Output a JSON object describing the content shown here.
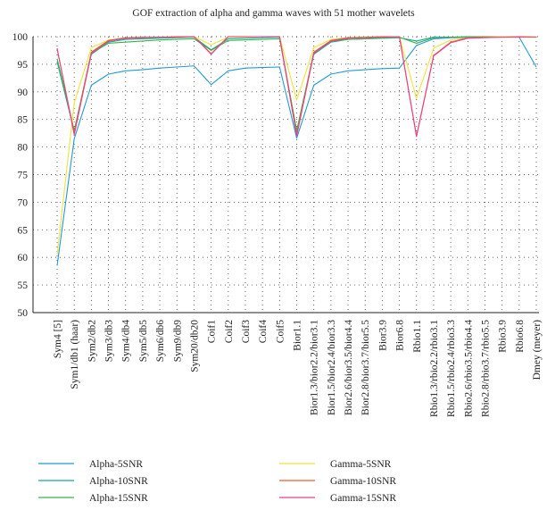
{
  "chart_data": {
    "type": "line",
    "title": "GOF extraction of alpha and gamma waves with 51 mother wavelets",
    "xlabel": "",
    "ylabel": "",
    "ylim": [
      50,
      100
    ],
    "yticks": [
      50,
      55,
      60,
      65,
      70,
      75,
      80,
      85,
      90,
      95,
      100
    ],
    "grid": true,
    "legend_position": "bottom",
    "categories": [
      "Sym4 [5]",
      "Sym1/db1 (haar)",
      "Sym2/db2",
      "Sym3/db3",
      "Sym4/db4",
      "Sym5/db5",
      "Sym6/db6",
      "Sym9/db9",
      "Sym20/db20",
      "Coif1",
      "Coif2",
      "Coif3",
      "Coif4",
      "Coif5",
      "Bior1.1",
      "Bior1.3/bior2.2/bior3.1",
      "Bior1.5/bior2.4/bior3.3",
      "Bior2.6/bior3.5/bior4.4",
      "Bior2.8/bior3.7/bior5.5",
      "Bior3.9",
      "Bior6.8",
      "Rbio1.1",
      "Rbio1.3/rbio2.2/rbio3.1",
      "Rbio1.5/rbio2.4/rbio3.3",
      "Rbio2.6/rbio3.5/rbio4.4",
      "Rbio2.8/rbio3.7/rbio5.5",
      "Rbio3.9",
      "Rbio6.8",
      "Dmey (meyer)"
    ],
    "series": [
      {
        "name": "Alpha-5SNR",
        "color": "#1f9ad6",
        "values": [
          58.5,
          81.5,
          91.2,
          93.2,
          93.8,
          94.0,
          94.3,
          94.5,
          94.7,
          91.3,
          93.8,
          94.3,
          94.4,
          94.5,
          81.6,
          91.2,
          93.2,
          93.8,
          94.0,
          94.2,
          94.3,
          98.4,
          99.6,
          99.8,
          99.9,
          99.9,
          99.9,
          99.9,
          94.5
        ]
      },
      {
        "name": "Alpha-10SNR",
        "color": "#16a79a",
        "values": [
          95.5,
          82.8,
          96.8,
          99.0,
          99.5,
          99.6,
          99.7,
          99.8,
          99.9,
          97.6,
          99.6,
          99.7,
          99.8,
          99.9,
          82.8,
          96.8,
          99.0,
          99.5,
          99.6,
          99.7,
          99.8,
          99.2,
          99.9,
          99.9,
          100.0,
          100.0,
          100.0,
          100.0,
          100.0
        ]
      },
      {
        "name": "Alpha-15SNR",
        "color": "#37b34a",
        "values": [
          96.0,
          83.0,
          97.0,
          98.8,
          99.0,
          99.2,
          99.4,
          99.5,
          99.6,
          97.5,
          99.3,
          99.4,
          99.5,
          99.6,
          83.0,
          97.1,
          99.2,
          99.5,
          99.6,
          99.8,
          99.9,
          98.8,
          99.8,
          99.9,
          99.9,
          100.0,
          100.0,
          100.0,
          100.0
        ]
      },
      {
        "name": "Gamma-5SNR",
        "color": "#f0e23c",
        "values": [
          60.5,
          88.0,
          98.0,
          99.4,
          99.7,
          99.8,
          99.9,
          99.9,
          100.0,
          98.5,
          99.9,
          99.9,
          100.0,
          100.0,
          88.5,
          98.0,
          99.5,
          99.8,
          99.9,
          99.9,
          100.0,
          88.8,
          97.9,
          99.4,
          99.8,
          99.9,
          100.0,
          100.0,
          100.0
        ]
      },
      {
        "name": "Gamma-10SNR",
        "color": "#ef5a2e",
        "values": [
          97.8,
          82.5,
          97.2,
          99.3,
          99.8,
          99.9,
          99.9,
          100.0,
          100.0,
          96.9,
          100.0,
          100.0,
          100.0,
          100.0,
          82.2,
          97.2,
          99.3,
          99.8,
          99.9,
          100.0,
          100.0,
          82.0,
          96.6,
          99.0,
          99.8,
          99.9,
          99.9,
          100.0,
          99.9
        ]
      },
      {
        "name": "Gamma-15SNR",
        "color": "#e8418c",
        "values": [
          97.9,
          82.2,
          97.0,
          99.2,
          99.7,
          99.8,
          99.9,
          99.9,
          100.0,
          96.8,
          100.0,
          100.0,
          100.0,
          100.0,
          82.0,
          97.0,
          99.2,
          99.7,
          99.8,
          99.9,
          100.0,
          81.9,
          96.5,
          98.9,
          99.7,
          99.8,
          99.9,
          99.9,
          99.9
        ]
      }
    ]
  }
}
